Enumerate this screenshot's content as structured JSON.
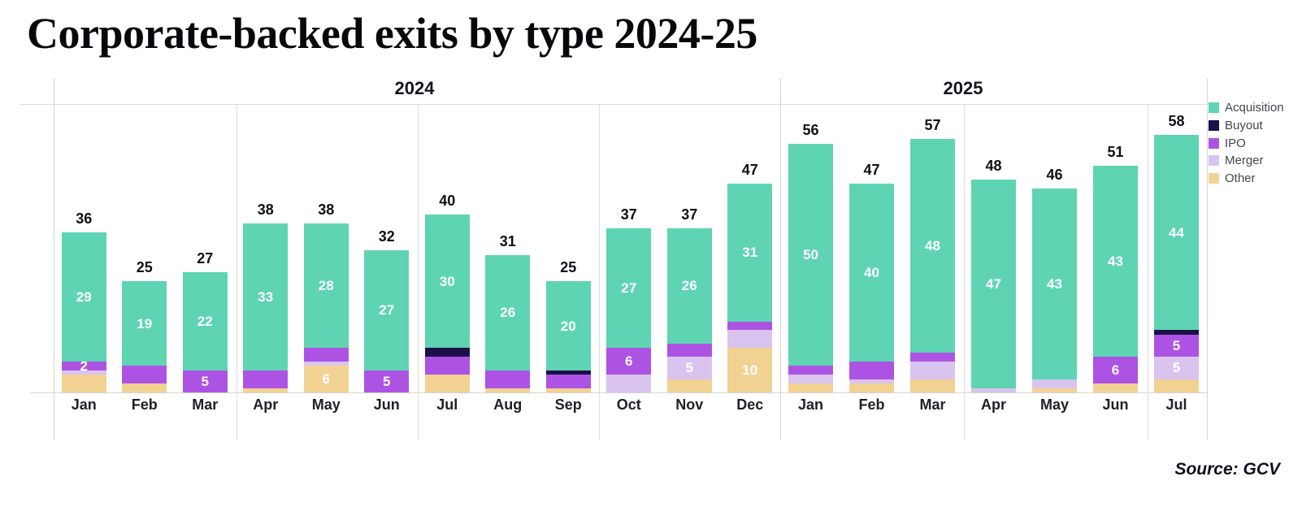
{
  "title": "Corporate-backed exits by type 2024-25",
  "source": "Source: GCV",
  "legend": [
    {
      "key": "acquisition",
      "label": "Acquisition",
      "color": "#5ed4b2"
    },
    {
      "key": "buyout",
      "label": "Buyout",
      "color": "#1b1049"
    },
    {
      "key": "ipo",
      "label": "IPO",
      "color": "#ad53e4"
    },
    {
      "key": "merger",
      "label": "Merger",
      "color": "#d9c4f0"
    },
    {
      "key": "other",
      "label": "Other",
      "color": "#f2d292"
    }
  ],
  "chart_data": {
    "type": "bar",
    "stacked": true,
    "grid": "light vertical separators per quarter, top rule and baseline only",
    "legend_position": "top-right",
    "series_order_bottom_to_top": [
      "other",
      "merger",
      "ipo",
      "buyout",
      "acquisition"
    ],
    "groups": [
      {
        "label": "2024",
        "months": [
          {
            "label": "Jan",
            "total": 36,
            "values": {
              "acquisition": 29,
              "buyout": 0,
              "ipo": 2,
              "merger": 1,
              "other": 4
            },
            "value_labels_visible": [
              "acquisition",
              "ipo"
            ]
          },
          {
            "label": "Feb",
            "total": 25,
            "values": {
              "acquisition": 19,
              "buyout": 0,
              "ipo": 4,
              "merger": 0,
              "other": 2
            },
            "value_labels_visible": [
              "acquisition"
            ]
          },
          {
            "label": "Mar",
            "total": 27,
            "values": {
              "acquisition": 22,
              "buyout": 0,
              "ipo": 5,
              "merger": 0,
              "other": 0
            },
            "value_labels_visible": [
              "acquisition",
              "ipo"
            ]
          },
          {
            "label": "Apr",
            "total": 38,
            "values": {
              "acquisition": 33,
              "buyout": 0,
              "ipo": 4,
              "merger": 0,
              "other": 1
            },
            "value_labels_visible": [
              "acquisition"
            ]
          },
          {
            "label": "May",
            "total": 38,
            "values": {
              "acquisition": 28,
              "buyout": 0,
              "ipo": 3,
              "merger": 1,
              "other": 6
            },
            "value_labels_visible": [
              "acquisition",
              "other"
            ]
          },
          {
            "label": "Jun",
            "total": 32,
            "values": {
              "acquisition": 27,
              "buyout": 0,
              "ipo": 5,
              "merger": 0,
              "other": 0
            },
            "value_labels_visible": [
              "acquisition",
              "ipo"
            ]
          },
          {
            "label": "Jul",
            "total": 40,
            "values": {
              "acquisition": 30,
              "buyout": 2,
              "ipo": 4,
              "merger": 0,
              "other": 4
            },
            "value_labels_visible": [
              "acquisition"
            ]
          },
          {
            "label": "Aug",
            "total": 31,
            "values": {
              "acquisition": 26,
              "buyout": 0,
              "ipo": 4,
              "merger": 0,
              "other": 1
            },
            "value_labels_visible": [
              "acquisition"
            ]
          },
          {
            "label": "Sep",
            "total": 25,
            "values": {
              "acquisition": 20,
              "buyout": 1,
              "ipo": 3,
              "merger": 0,
              "other": 1
            },
            "value_labels_visible": [
              "acquisition"
            ]
          },
          {
            "label": "Oct",
            "total": 37,
            "values": {
              "acquisition": 27,
              "buyout": 0,
              "ipo": 6,
              "merger": 4,
              "other": 0
            },
            "value_labels_visible": [
              "acquisition",
              "ipo"
            ]
          },
          {
            "label": "Nov",
            "total": 37,
            "values": {
              "acquisition": 26,
              "buyout": 0,
              "ipo": 3,
              "merger": 5,
              "other": 3
            },
            "value_labels_visible": [
              "acquisition",
              "merger"
            ]
          },
          {
            "label": "Dec",
            "total": 47,
            "values": {
              "acquisition": 31,
              "buyout": 0,
              "ipo": 2,
              "merger": 4,
              "other": 10
            },
            "value_labels_visible": [
              "acquisition",
              "other"
            ]
          }
        ]
      },
      {
        "label": "2025",
        "months": [
          {
            "label": "Jan",
            "total": 56,
            "values": {
              "acquisition": 50,
              "buyout": 0,
              "ipo": 2,
              "merger": 2,
              "other": 2
            },
            "value_labels_visible": [
              "acquisition"
            ]
          },
          {
            "label": "Feb",
            "total": 47,
            "values": {
              "acquisition": 40,
              "buyout": 0,
              "ipo": 4,
              "merger": 1,
              "other": 2
            },
            "value_labels_visible": [
              "acquisition"
            ]
          },
          {
            "label": "Mar",
            "total": 57,
            "values": {
              "acquisition": 48,
              "buyout": 0,
              "ipo": 2,
              "merger": 4,
              "other": 3
            },
            "value_labels_visible": [
              "acquisition"
            ]
          },
          {
            "label": "Apr",
            "total": 48,
            "values": {
              "acquisition": 47,
              "buyout": 0,
              "ipo": 0,
              "merger": 1,
              "other": 0
            },
            "value_labels_visible": [
              "acquisition"
            ]
          },
          {
            "label": "May",
            "total": 46,
            "values": {
              "acquisition": 43,
              "buyout": 0,
              "ipo": 0,
              "merger": 2,
              "other": 1
            },
            "value_labels_visible": [
              "acquisition"
            ]
          },
          {
            "label": "Jun",
            "total": 51,
            "values": {
              "acquisition": 43,
              "buyout": 0,
              "ipo": 6,
              "merger": 0,
              "other": 2
            },
            "value_labels_visible": [
              "acquisition",
              "ipo"
            ]
          },
          {
            "label": "Jul",
            "total": 58,
            "values": {
              "acquisition": 44,
              "buyout": 1,
              "ipo": 5,
              "merger": 5,
              "other": 3
            },
            "value_labels_visible": [
              "acquisition",
              "ipo",
              "merger"
            ]
          }
        ]
      }
    ]
  }
}
